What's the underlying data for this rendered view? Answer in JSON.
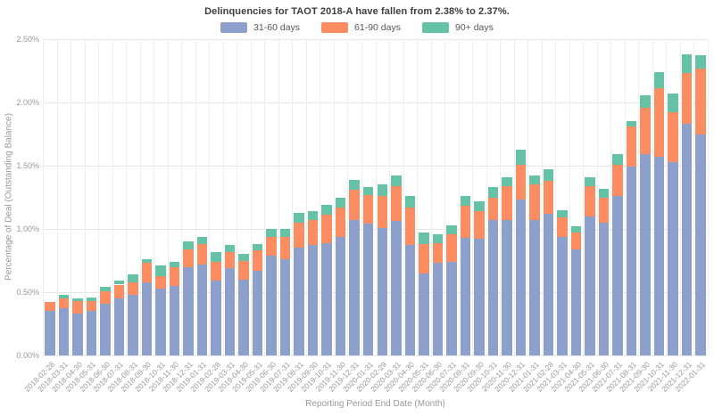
{
  "title": "Delinquencies for TAOT 2018-A have fallen from 2.38% to 2.37%.",
  "legend": [
    {
      "label": "31-60 days",
      "color": "#8da0cb"
    },
    {
      "label": "61-90 days",
      "color": "#fc8d62"
    },
    {
      "label": "90+ days",
      "color": "#66c2a5"
    }
  ],
  "axes": {
    "xlabel": "Reporting Period End Date (Month)",
    "ylabel": "Percentage of Deal (Outstanding Balance)"
  },
  "chart_data": {
    "type": "bar",
    "stacked": true,
    "title": "Delinquencies for TAOT 2018-A have fallen from 2.38% to 2.37%.",
    "xlabel": "Reporting Period End Date (Month)",
    "ylabel": "Percentage of Deal (Outstanding Balance)",
    "ylim": [
      0,
      2.5
    ],
    "grid": true,
    "legend_position": "top",
    "yticks": [
      {
        "value": 0.0,
        "label": "0.00%"
      },
      {
        "value": 0.5,
        "label": "0.50%"
      },
      {
        "value": 1.0,
        "label": "1.00%"
      },
      {
        "value": 1.5,
        "label": "1.50%"
      },
      {
        "value": 2.0,
        "label": "2.00%"
      },
      {
        "value": 2.5,
        "label": "2.50%"
      }
    ],
    "categories": [
      "2018-02-28",
      "2018-03-31",
      "2018-04-30",
      "2018-05-31",
      "2018-06-30",
      "2018-07-31",
      "2018-08-31",
      "2018-09-30",
      "2018-10-31",
      "2018-11-30",
      "2018-12-31",
      "2019-01-31",
      "2019-02-28",
      "2019-03-31",
      "2019-04-30",
      "2019-05-31",
      "2019-06-30",
      "2019-07-31",
      "2019-08-31",
      "2019-09-30",
      "2019-10-31",
      "2019-11-30",
      "2019-12-31",
      "2020-01-31",
      "2020-02-29",
      "2020-03-31",
      "2020-04-30",
      "2020-05-31",
      "2020-06-30",
      "2020-07-31",
      "2020-08-31",
      "2020-09-30",
      "2020-10-31",
      "2020-11-30",
      "2020-12-31",
      "2021-01-31",
      "2021-02-28",
      "2021-03-31",
      "2021-04-30",
      "2021-05-31",
      "2021-06-30",
      "2021-07-31",
      "2021-08-31",
      "2021-09-30",
      "2021-10-31",
      "2021-11-30",
      "2021-12-31",
      "2022-01-31"
    ],
    "series": [
      {
        "name": "31-60 days",
        "color": "#8da0cb",
        "values": [
          0.35,
          0.37,
          0.33,
          0.35,
          0.41,
          0.45,
          0.48,
          0.58,
          0.53,
          0.55,
          0.7,
          0.72,
          0.59,
          0.69,
          0.6,
          0.67,
          0.79,
          0.76,
          0.85,
          0.87,
          0.89,
          0.94,
          1.07,
          1.04,
          1.01,
          1.06,
          0.87,
          0.65,
          0.73,
          0.74,
          0.93,
          0.92,
          1.07,
          1.07,
          1.23,
          1.07,
          1.12,
          0.94,
          0.84,
          1.1,
          1.05,
          1.26,
          1.49,
          1.59,
          1.57,
          1.53,
          1.83,
          1.75
        ]
      },
      {
        "name": "61-90 days",
        "color": "#fc8d62",
        "values": [
          0.07,
          0.08,
          0.1,
          0.08,
          0.1,
          0.11,
          0.1,
          0.15,
          0.1,
          0.15,
          0.14,
          0.16,
          0.15,
          0.13,
          0.15,
          0.16,
          0.15,
          0.18,
          0.2,
          0.2,
          0.22,
          0.23,
          0.24,
          0.23,
          0.25,
          0.28,
          0.3,
          0.23,
          0.16,
          0.22,
          0.25,
          0.22,
          0.18,
          0.27,
          0.28,
          0.28,
          0.26,
          0.15,
          0.13,
          0.24,
          0.2,
          0.25,
          0.32,
          0.37,
          0.54,
          0.39,
          0.4,
          0.52
        ]
      },
      {
        "name": "90+ days",
        "color": "#66c2a5",
        "values": [
          0.0,
          0.03,
          0.02,
          0.03,
          0.03,
          0.03,
          0.06,
          0.03,
          0.08,
          0.04,
          0.06,
          0.06,
          0.08,
          0.05,
          0.05,
          0.05,
          0.06,
          0.06,
          0.08,
          0.07,
          0.08,
          0.08,
          0.08,
          0.06,
          0.09,
          0.08,
          0.09,
          0.09,
          0.07,
          0.07,
          0.08,
          0.08,
          0.08,
          0.07,
          0.12,
          0.07,
          0.09,
          0.06,
          0.05,
          0.07,
          0.07,
          0.08,
          0.04,
          0.1,
          0.13,
          0.15,
          0.15,
          0.1
        ]
      }
    ]
  }
}
